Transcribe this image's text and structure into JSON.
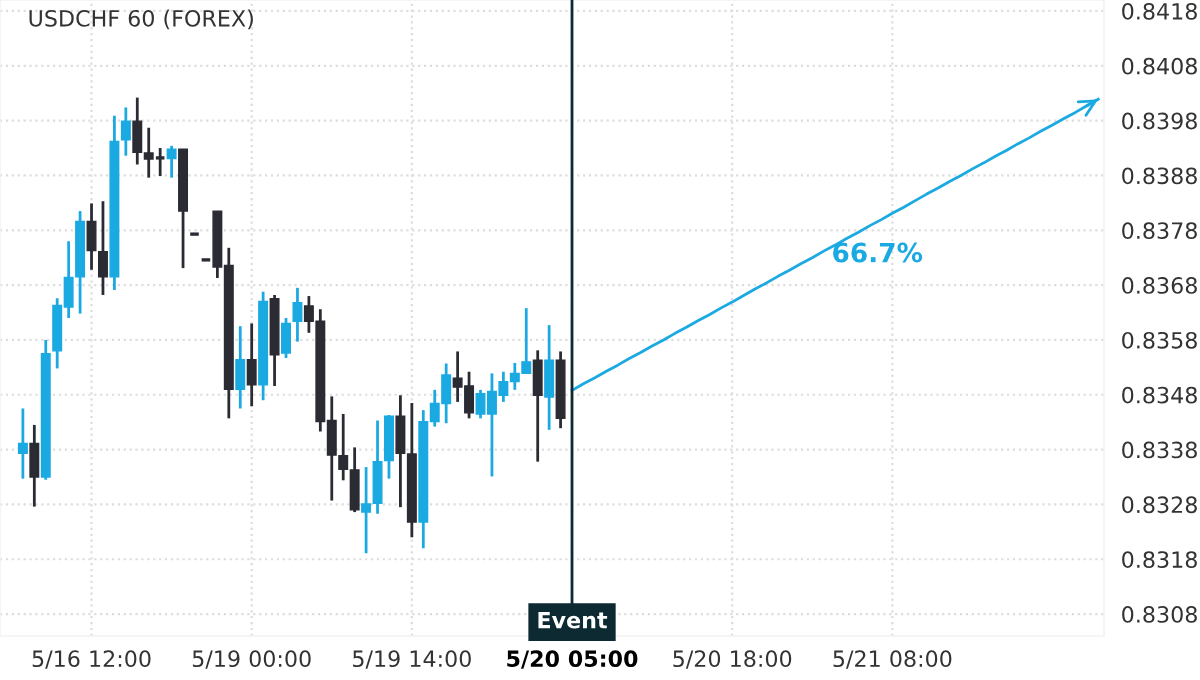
{
  "chart_data": {
    "type": "candlestick",
    "title": "USDCHF 60 (FOREX)",
    "categories": [
      null,
      null,
      null,
      null,
      null,
      null,
      "5/16 12:00",
      null,
      null,
      null,
      null,
      null,
      null,
      null,
      null,
      null,
      null,
      null,
      null,
      null,
      "5/19 00:00",
      null,
      null,
      null,
      null,
      null,
      null,
      null,
      null,
      null,
      null,
      null,
      null,
      null,
      "5/19 14:00",
      null,
      null,
      null,
      null,
      null,
      null,
      null,
      null,
      null,
      null,
      null,
      null,
      null,
      "5/20 05:00",
      null,
      null,
      null,
      null,
      null,
      null,
      null,
      null,
      null,
      null,
      null,
      null,
      null,
      "5/20 18:00",
      null,
      null,
      null,
      null,
      null,
      null,
      null,
      null,
      null,
      null,
      null,
      null,
      null,
      "5/21 08:00",
      null,
      null,
      null,
      null,
      null,
      null,
      null,
      null,
      null,
      null,
      null,
      null,
      null,
      null,
      null,
      null,
      null,
      null
    ],
    "ohlc": [
      [
        0.83373,
        0.83455,
        0.83327,
        0.83391
      ],
      [
        0.83391,
        0.83425,
        0.83276,
        0.8333
      ],
      [
        0.8333,
        0.8358,
        0.83325,
        0.83555
      ],
      [
        0.8356,
        0.83656,
        0.83528,
        0.83643
      ],
      [
        0.8364,
        0.8376,
        0.8362,
        0.83694
      ],
      [
        0.83695,
        0.83815,
        0.83628,
        0.83796
      ],
      [
        0.83796,
        0.83829,
        0.83708,
        0.83743
      ],
      [
        0.83741,
        0.83833,
        0.83662,
        0.83695
      ],
      [
        0.83695,
        0.83989,
        0.83671,
        0.83942
      ],
      [
        0.83945,
        0.84004,
        0.83916,
        0.83979
      ],
      [
        0.83979,
        0.84022,
        0.839,
        0.83922
      ],
      [
        0.83921,
        0.83967,
        0.83876,
        0.8391
      ],
      [
        0.83912,
        0.8393,
        0.83879,
        0.83912
      ],
      [
        0.83911,
        0.83934,
        0.83876,
        0.83928
      ],
      [
        0.83928,
        0.83928,
        0.83711,
        0.83815
      ],
      [
        0.83773,
        0.83773,
        0.83773,
        0.83773
      ],
      [
        0.83726,
        0.83726,
        0.83726,
        0.83726
      ],
      [
        0.83815,
        0.83815,
        0.83693,
        0.83713
      ],
      [
        0.83716,
        0.83748,
        0.83437,
        0.8349
      ],
      [
        0.8349,
        0.83605,
        0.83455,
        0.83544
      ],
      [
        0.83544,
        0.8361,
        0.83459,
        0.83498
      ],
      [
        0.83498,
        0.83668,
        0.8347,
        0.8365
      ],
      [
        0.83655,
        0.83662,
        0.83496,
        0.83553
      ],
      [
        0.83556,
        0.8362,
        0.83547,
        0.8361
      ],
      [
        0.83614,
        0.83675,
        0.83577,
        0.83648
      ],
      [
        0.83642,
        0.8366,
        0.83593,
        0.83614
      ],
      [
        0.83614,
        0.83636,
        0.83413,
        0.83431
      ],
      [
        0.83433,
        0.83477,
        0.83287,
        0.8337
      ],
      [
        0.83369,
        0.83445,
        0.83324,
        0.83344
      ],
      [
        0.83343,
        0.83384,
        0.83266,
        0.8327
      ],
      [
        0.83266,
        0.83348,
        0.83191,
        0.83281
      ],
      [
        0.83282,
        0.83433,
        0.83263,
        0.83358
      ],
      [
        0.8336,
        0.83443,
        0.83327,
        0.83441
      ],
      [
        0.83441,
        0.83479,
        0.83275,
        0.83373
      ],
      [
        0.83372,
        0.83465,
        0.8322,
        0.83248
      ],
      [
        0.83248,
        0.83452,
        0.832,
        0.83431
      ],
      [
        0.83431,
        0.83489,
        0.83422,
        0.83464
      ],
      [
        0.83464,
        0.83537,
        0.83428,
        0.83516
      ],
      [
        0.8351,
        0.83559,
        0.83467,
        0.83494
      ],
      [
        0.83496,
        0.83522,
        0.83437,
        0.83447
      ],
      [
        0.83445,
        0.83489,
        0.83437,
        0.83482
      ],
      [
        0.83445,
        0.83519,
        0.83331,
        0.83486
      ],
      [
        0.83479,
        0.83522,
        0.83467,
        0.83504
      ],
      [
        0.83504,
        0.83538,
        0.83489,
        0.83519
      ],
      [
        0.83519,
        0.83638,
        0.83519,
        0.8354
      ],
      [
        0.83543,
        0.83561,
        0.83358,
        0.83479
      ],
      [
        0.83476,
        0.83607,
        0.83416,
        0.83543
      ],
      [
        0.83543,
        0.83559,
        0.83419,
        0.83437
      ],
      null,
      null,
      null,
      null,
      null,
      null,
      null,
      null,
      null,
      null,
      null,
      null,
      null,
      null,
      null,
      null,
      null,
      null,
      null,
      null,
      null,
      null,
      null,
      null,
      null,
      null,
      null,
      null,
      null,
      null,
      null,
      null,
      null,
      null,
      null,
      null,
      null,
      null,
      null,
      null,
      null,
      null,
      null,
      null,
      null,
      null,
      null
    ],
    "colors": [
      "#1ba9e2",
      "#2a2b33",
      "#1ba9e2",
      "#1ba9e2",
      "#1ba9e2",
      "#1ba9e2",
      "#2a2b33",
      "#2a2b33",
      "#1ba9e2",
      "#1ba9e2",
      "#2a2b33",
      "#2a2b33",
      "#2a2b33",
      "#1ba9e2",
      "#2a2b33",
      "#2a2b33",
      "#2a2b33",
      "#2a2b33",
      "#2a2b33",
      "#1ba9e2",
      "#2a2b33",
      "#1ba9e2",
      "#2a2b33",
      "#1ba9e2",
      "#1ba9e2",
      "#2a2b33",
      "#2a2b33",
      "#2a2b33",
      "#2a2b33",
      "#2a2b33",
      "#1ba9e2",
      "#1ba9e2",
      "#1ba9e2",
      "#2a2b33",
      "#2a2b33",
      "#1ba9e2",
      "#1ba9e2",
      "#1ba9e2",
      "#2a2b33",
      "#2a2b33",
      "#1ba9e2",
      "#1ba9e2",
      "#1ba9e2",
      "#1ba9e2",
      "#1ba9e2",
      "#2a2b33",
      "#1ba9e2",
      "#2a2b33",
      null,
      null,
      null,
      null,
      null,
      null,
      null,
      null,
      null,
      null,
      null,
      null,
      null,
      null,
      null,
      null,
      null,
      null,
      null,
      null,
      null,
      null,
      null,
      null,
      null,
      null,
      null,
      null,
      null,
      null,
      null,
      null,
      null,
      null,
      null,
      null,
      null,
      null,
      null,
      null,
      null,
      null,
      null,
      null,
      null,
      null,
      null
    ],
    "series": [
      {
        "type": "line",
        "color": "#1ba9e2",
        "values": [
          null,
          null,
          null,
          null,
          null,
          null,
          null,
          null,
          null,
          null,
          null,
          null,
          null,
          null,
          null,
          null,
          null,
          null,
          null,
          null,
          null,
          null,
          null,
          null,
          null,
          null,
          null,
          null,
          null,
          null,
          null,
          null,
          null,
          null,
          null,
          null,
          null,
          null,
          null,
          null,
          null,
          null,
          null,
          null,
          null,
          null,
          null,
          null,
          0.83488,
          0.835,
          0.83511,
          0.83523,
          0.83534,
          0.83546,
          0.83557,
          0.83569,
          0.8358,
          0.83592,
          0.83603,
          0.83615,
          0.83626,
          0.83638,
          0.83649,
          0.83661,
          0.83673,
          0.83684,
          0.83696,
          0.83707,
          0.83719,
          0.8373,
          0.83742,
          0.83753,
          0.83765,
          0.83776,
          0.83788,
          0.83799,
          0.83811,
          0.83822,
          0.83834,
          0.83846,
          0.83857,
          0.83869,
          0.8388,
          0.83892,
          0.83903,
          0.83915,
          0.83926,
          0.83938,
          0.83949,
          0.83961,
          0.83972,
          0.83984,
          0.83995,
          0.84007,
          0.84019
        ]
      }
    ],
    "ref_lines": [
      {
        "axis": "x",
        "value": "5/20 05:00",
        "label": "Event",
        "color": "#0d2a33"
      }
    ],
    "annotations": [
      "66.7%"
    ],
    "ylim": [
      0.8304,
      0.842
    ],
    "yticks": [
      0.8308,
      0.8318,
      0.8328,
      0.8338,
      0.8348,
      0.8358,
      0.8368,
      0.8378,
      0.8388,
      0.8398,
      0.8408,
      0.8418
    ],
    "grid": true
  }
}
